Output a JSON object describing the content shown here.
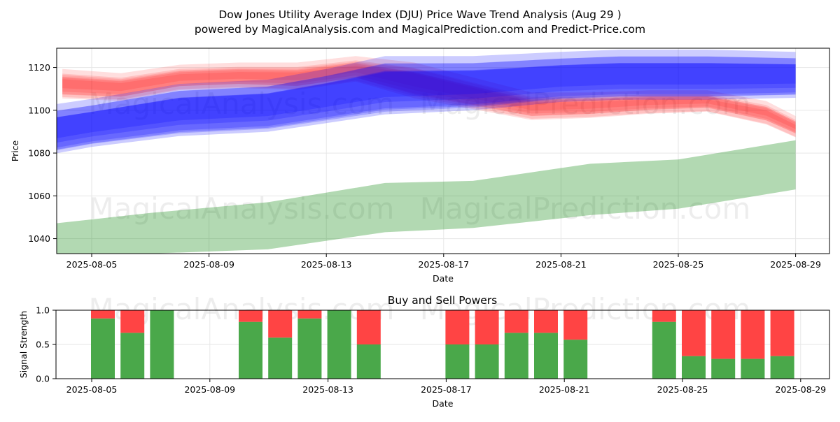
{
  "title_line1": "Dow Jones Utility Average Index (DJU) Price Wave Trend Analysis (Aug 29 )",
  "title_line2": "powered by MagicalAnalysis.com and MagicalPrediction.com and Predict-Price.com",
  "watermarks": [
    "MagicalAnalysis.com",
    "MagicalPrediction.com"
  ],
  "colors": {
    "red_band": "#ff0000",
    "blue_band": "#0000ff",
    "green_band": "#008000",
    "buy": "#4aa84a",
    "sell": "#ff4444"
  },
  "chart_data": [
    {
      "type": "area",
      "title": "",
      "xlabel": "Date",
      "ylabel": "Price",
      "x_ticks": [
        "2025-08-05",
        "2025-08-09",
        "2025-08-13",
        "2025-08-17",
        "2025-08-21",
        "2025-08-25",
        "2025-08-29"
      ],
      "y_ticks": [
        1040,
        1060,
        1080,
        1100,
        1120
      ],
      "xlim": [
        "2025-08-03",
        "2025-08-30"
      ],
      "ylim": [
        1033,
        1129
      ],
      "grid": true,
      "series": [
        {
          "color": "red",
          "x": [
            "2025-08-04",
            "2025-08-06",
            "2025-08-08",
            "2025-08-10",
            "2025-08-12",
            "2025-08-14",
            "2025-08-16",
            "2025-08-18",
            "2025-08-20",
            "2025-08-22",
            "2025-08-24",
            "2025-08-26",
            "2025-08-28",
            "2025-08-29"
          ],
          "lower": [
            1106,
            1105,
            1110,
            1111,
            1110,
            1114,
            1106,
            1101,
            1096,
            1097,
            1099,
            1100,
            1094,
            1088
          ],
          "upper": [
            1118,
            1116,
            1120,
            1121,
            1121,
            1124,
            1121,
            1114,
            1107,
            1107,
            1108,
            1108,
            1103,
            1096
          ]
        },
        {
          "color": "blue",
          "x": [
            "2025-08-03",
            "2025-08-05",
            "2025-08-08",
            "2025-08-11",
            "2025-08-13",
            "2025-08-15",
            "2025-08-18",
            "2025-08-21",
            "2025-08-23",
            "2025-08-26",
            "2025-08-29"
          ],
          "lower": [
            1078,
            1083,
            1088,
            1090,
            1094,
            1098,
            1100,
            1104,
            1105,
            1105,
            1106
          ],
          "upper": [
            1100,
            1104,
            1111,
            1113,
            1118,
            1124,
            1124,
            1126,
            1127,
            1127,
            1126
          ]
        },
        {
          "color": "green",
          "x": [
            "2025-08-03",
            "2025-08-07",
            "2025-08-11",
            "2025-08-15",
            "2025-08-18",
            "2025-08-22",
            "2025-08-25",
            "2025-08-29"
          ],
          "lower": [
            1033,
            1033,
            1035,
            1043,
            1045,
            1051,
            1054,
            1063
          ],
          "upper": [
            1046,
            1052,
            1057,
            1066,
            1067,
            1075,
            1077,
            1086
          ]
        }
      ]
    },
    {
      "type": "bar",
      "title": "Buy and Sell Powers",
      "xlabel": "Date",
      "ylabel": "Signal Strength",
      "x_ticks": [
        "2025-08-05",
        "2025-08-09",
        "2025-08-13",
        "2025-08-17",
        "2025-08-21",
        "2025-08-25",
        "2025-08-29"
      ],
      "y_ticks": [
        "0.0",
        "0.5",
        "1.0"
      ],
      "ylim": [
        0,
        1
      ],
      "grid": true,
      "categories": [
        "2025-08-05",
        "2025-08-06",
        "2025-08-07",
        "2025-08-10",
        "2025-08-11",
        "2025-08-12",
        "2025-08-13",
        "2025-08-14",
        "2025-08-17",
        "2025-08-18",
        "2025-08-19",
        "2025-08-20",
        "2025-08-21",
        "2025-08-24",
        "2025-08-25",
        "2025-08-26",
        "2025-08-27",
        "2025-08-28"
      ],
      "series": [
        {
          "color": "green",
          "values": [
            0.88,
            0.67,
            1.0,
            0.83,
            0.6,
            0.88,
            1.0,
            0.5,
            0.5,
            0.5,
            0.67,
            0.67,
            0.57,
            0.83,
            0.33,
            0.29,
            0.29,
            0.33
          ]
        },
        {
          "color": "red",
          "values": [
            0.12,
            0.33,
            0.0,
            0.17,
            0.4,
            0.12,
            0.0,
            0.5,
            0.5,
            0.5,
            0.33,
            0.33,
            0.43,
            0.17,
            0.67,
            0.71,
            0.71,
            0.67
          ]
        }
      ]
    }
  ]
}
